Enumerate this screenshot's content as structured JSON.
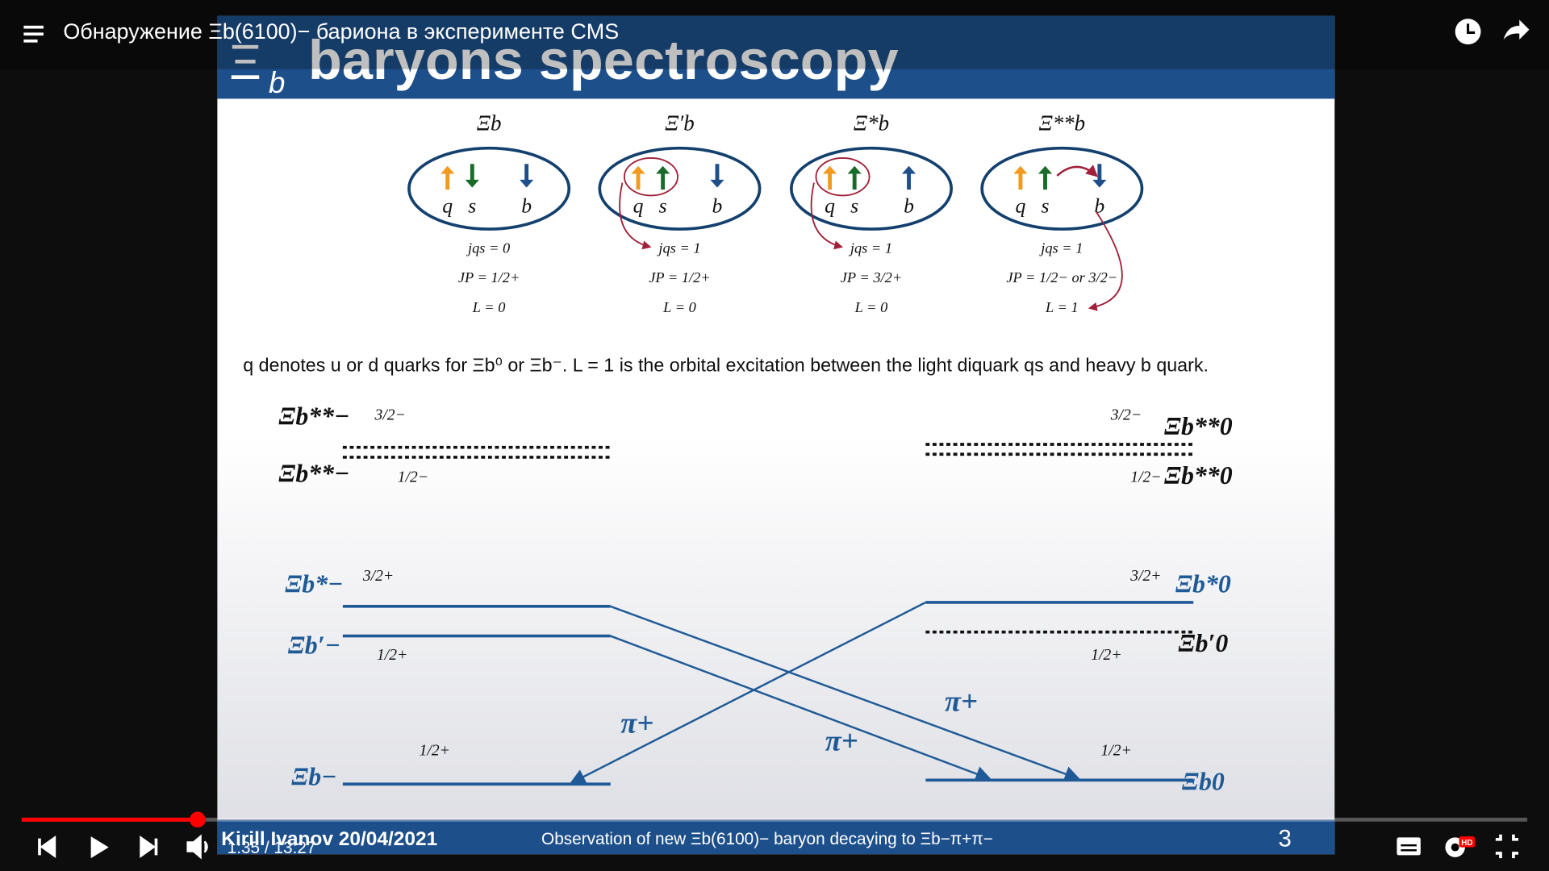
{
  "player": {
    "title": "Обнаружение Ξb(6100)− бариона в эксперименте CMS",
    "time": "1:35 / 13:27",
    "quality_badge": "HD"
  },
  "slide": {
    "header": {
      "symbol": "Ξ",
      "subscript": "b",
      "title": "baryons spectroscopy"
    },
    "states": [
      {
        "name": "Ξb",
        "quarks": [
          "q",
          "s",
          "b"
        ],
        "lines": [
          "jqs = 0",
          "JP = 1/2+",
          "L = 0"
        ]
      },
      {
        "name": "Ξ′b",
        "quarks": [
          "q",
          "s",
          "b"
        ],
        "lines": [
          "jqs = 1",
          "JP = 1/2+",
          "L = 0"
        ]
      },
      {
        "name": "Ξ*b",
        "quarks": [
          "q",
          "s",
          "b"
        ],
        "lines": [
          "jqs = 1",
          "JP = 3/2+",
          "L = 0"
        ]
      },
      {
        "name": "Ξ**b",
        "quarks": [
          "q",
          "s",
          "b"
        ],
        "lines": [
          "jqs = 1",
          "JP = 1/2− or 3/2−",
          "L = 1"
        ]
      }
    ],
    "note": "q denotes u or d quarks for Ξb⁰ or Ξb⁻. L = 1 is the orbital excitation between the light diquark qs and heavy b quark.",
    "levels": {
      "left": [
        {
          "label": "Ξb**−",
          "jp": "3/2−"
        },
        {
          "label": "Ξb**−",
          "jp": "1/2−"
        },
        {
          "label": "Ξb*−",
          "jp": "3/2+"
        },
        {
          "label": "Ξb′−",
          "jp": "1/2+"
        },
        {
          "label": "Ξb−",
          "jp": "1/2+"
        }
      ],
      "right": [
        {
          "label": "Ξb**0",
          "jp": "3/2−"
        },
        {
          "label": "Ξb**0",
          "jp": "1/2−"
        },
        {
          "label": "Ξb*0",
          "jp": "3/2+"
        },
        {
          "label": "Ξb′0",
          "jp": "1/2+"
        },
        {
          "label": "Ξb0",
          "jp": "1/2+"
        }
      ],
      "pions": [
        "π+",
        "π+",
        "π+"
      ]
    },
    "footer": {
      "author": "Kirill Ivanov 20/04/2021",
      "subtitle": "Observation of new Ξb(6100)− baryon decaying to Ξb−π+π−",
      "page": "3"
    }
  }
}
